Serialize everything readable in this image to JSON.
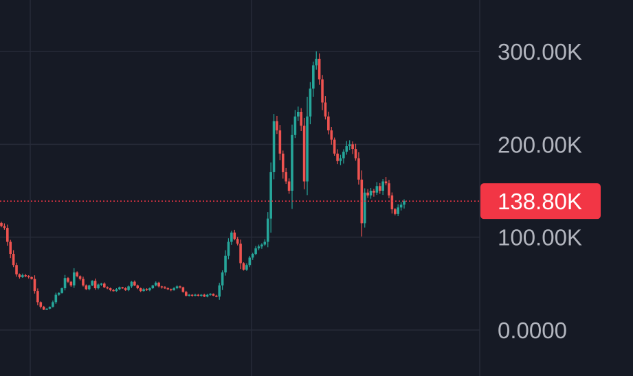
{
  "chart_data": {
    "type": "candlestick",
    "title": "",
    "xlabel": "",
    "ylabel": "",
    "ylim": [
      0,
      320000
    ],
    "grid": true,
    "y_ticks": [
      {
        "value": 0,
        "label": "0.0000"
      },
      {
        "value": 100000,
        "label": "100.00K"
      },
      {
        "value": 200000,
        "label": "200.00K"
      },
      {
        "value": 300000,
        "label": "300.00K"
      }
    ],
    "last_price": {
      "value": 138800,
      "label": "138.80K"
    },
    "colors": {
      "background": "#161a25",
      "grid": "#262b38",
      "axis_text": "#b2b5be",
      "up": "#26a69a",
      "down": "#ef5350",
      "price_badge": "#f23645",
      "price_line": "#f23645"
    },
    "series": [
      {
        "values": [
          112000,
          110000,
          95000,
          82000,
          70000,
          60000,
          57000,
          59000,
          58000,
          57000,
          55000,
          42000,
          30000,
          25000,
          22000,
          23000,
          25000,
          30000,
          38000,
          40000,
          45000,
          56000,
          52000,
          48000,
          62000,
          58000,
          55000,
          48000,
          44000,
          48000,
          53000,
          45000,
          49000,
          50000,
          46000,
          45000,
          43000,
          42000,
          44000,
          46000,
          45000,
          43000,
          47000,
          52000,
          48000,
          45000,
          42000,
          44000,
          43000,
          45000,
          48000,
          51000,
          47000,
          46000,
          45000,
          44000,
          43000,
          45000,
          47000,
          46000,
          41000,
          37000,
          38000,
          37000,
          38000,
          37000,
          38000,
          36000,
          38000,
          39000,
          37000,
          36000,
          48000,
          62000,
          80000,
          95000,
          105000,
          98000,
          93000,
          72000,
          65000,
          70000,
          78000,
          82000,
          88000,
          90000,
          92000,
          95000,
          120000,
          170000,
          225000,
          215000,
          190000,
          170000,
          160000,
          150000,
          210000,
          230000,
          235000,
          220000,
          160000,
          230000,
          260000,
          285000,
          292000,
          270000,
          245000,
          230000,
          215000,
          205000,
          190000,
          182000,
          185000,
          192000,
          198000,
          200000,
          195000,
          185000,
          162000,
          115000,
          148000,
          145000,
          150000,
          148000,
          155000,
          150000,
          160000,
          158000,
          145000,
          130000,
          125000,
          132000,
          135000,
          138800
        ]
      }
    ]
  }
}
